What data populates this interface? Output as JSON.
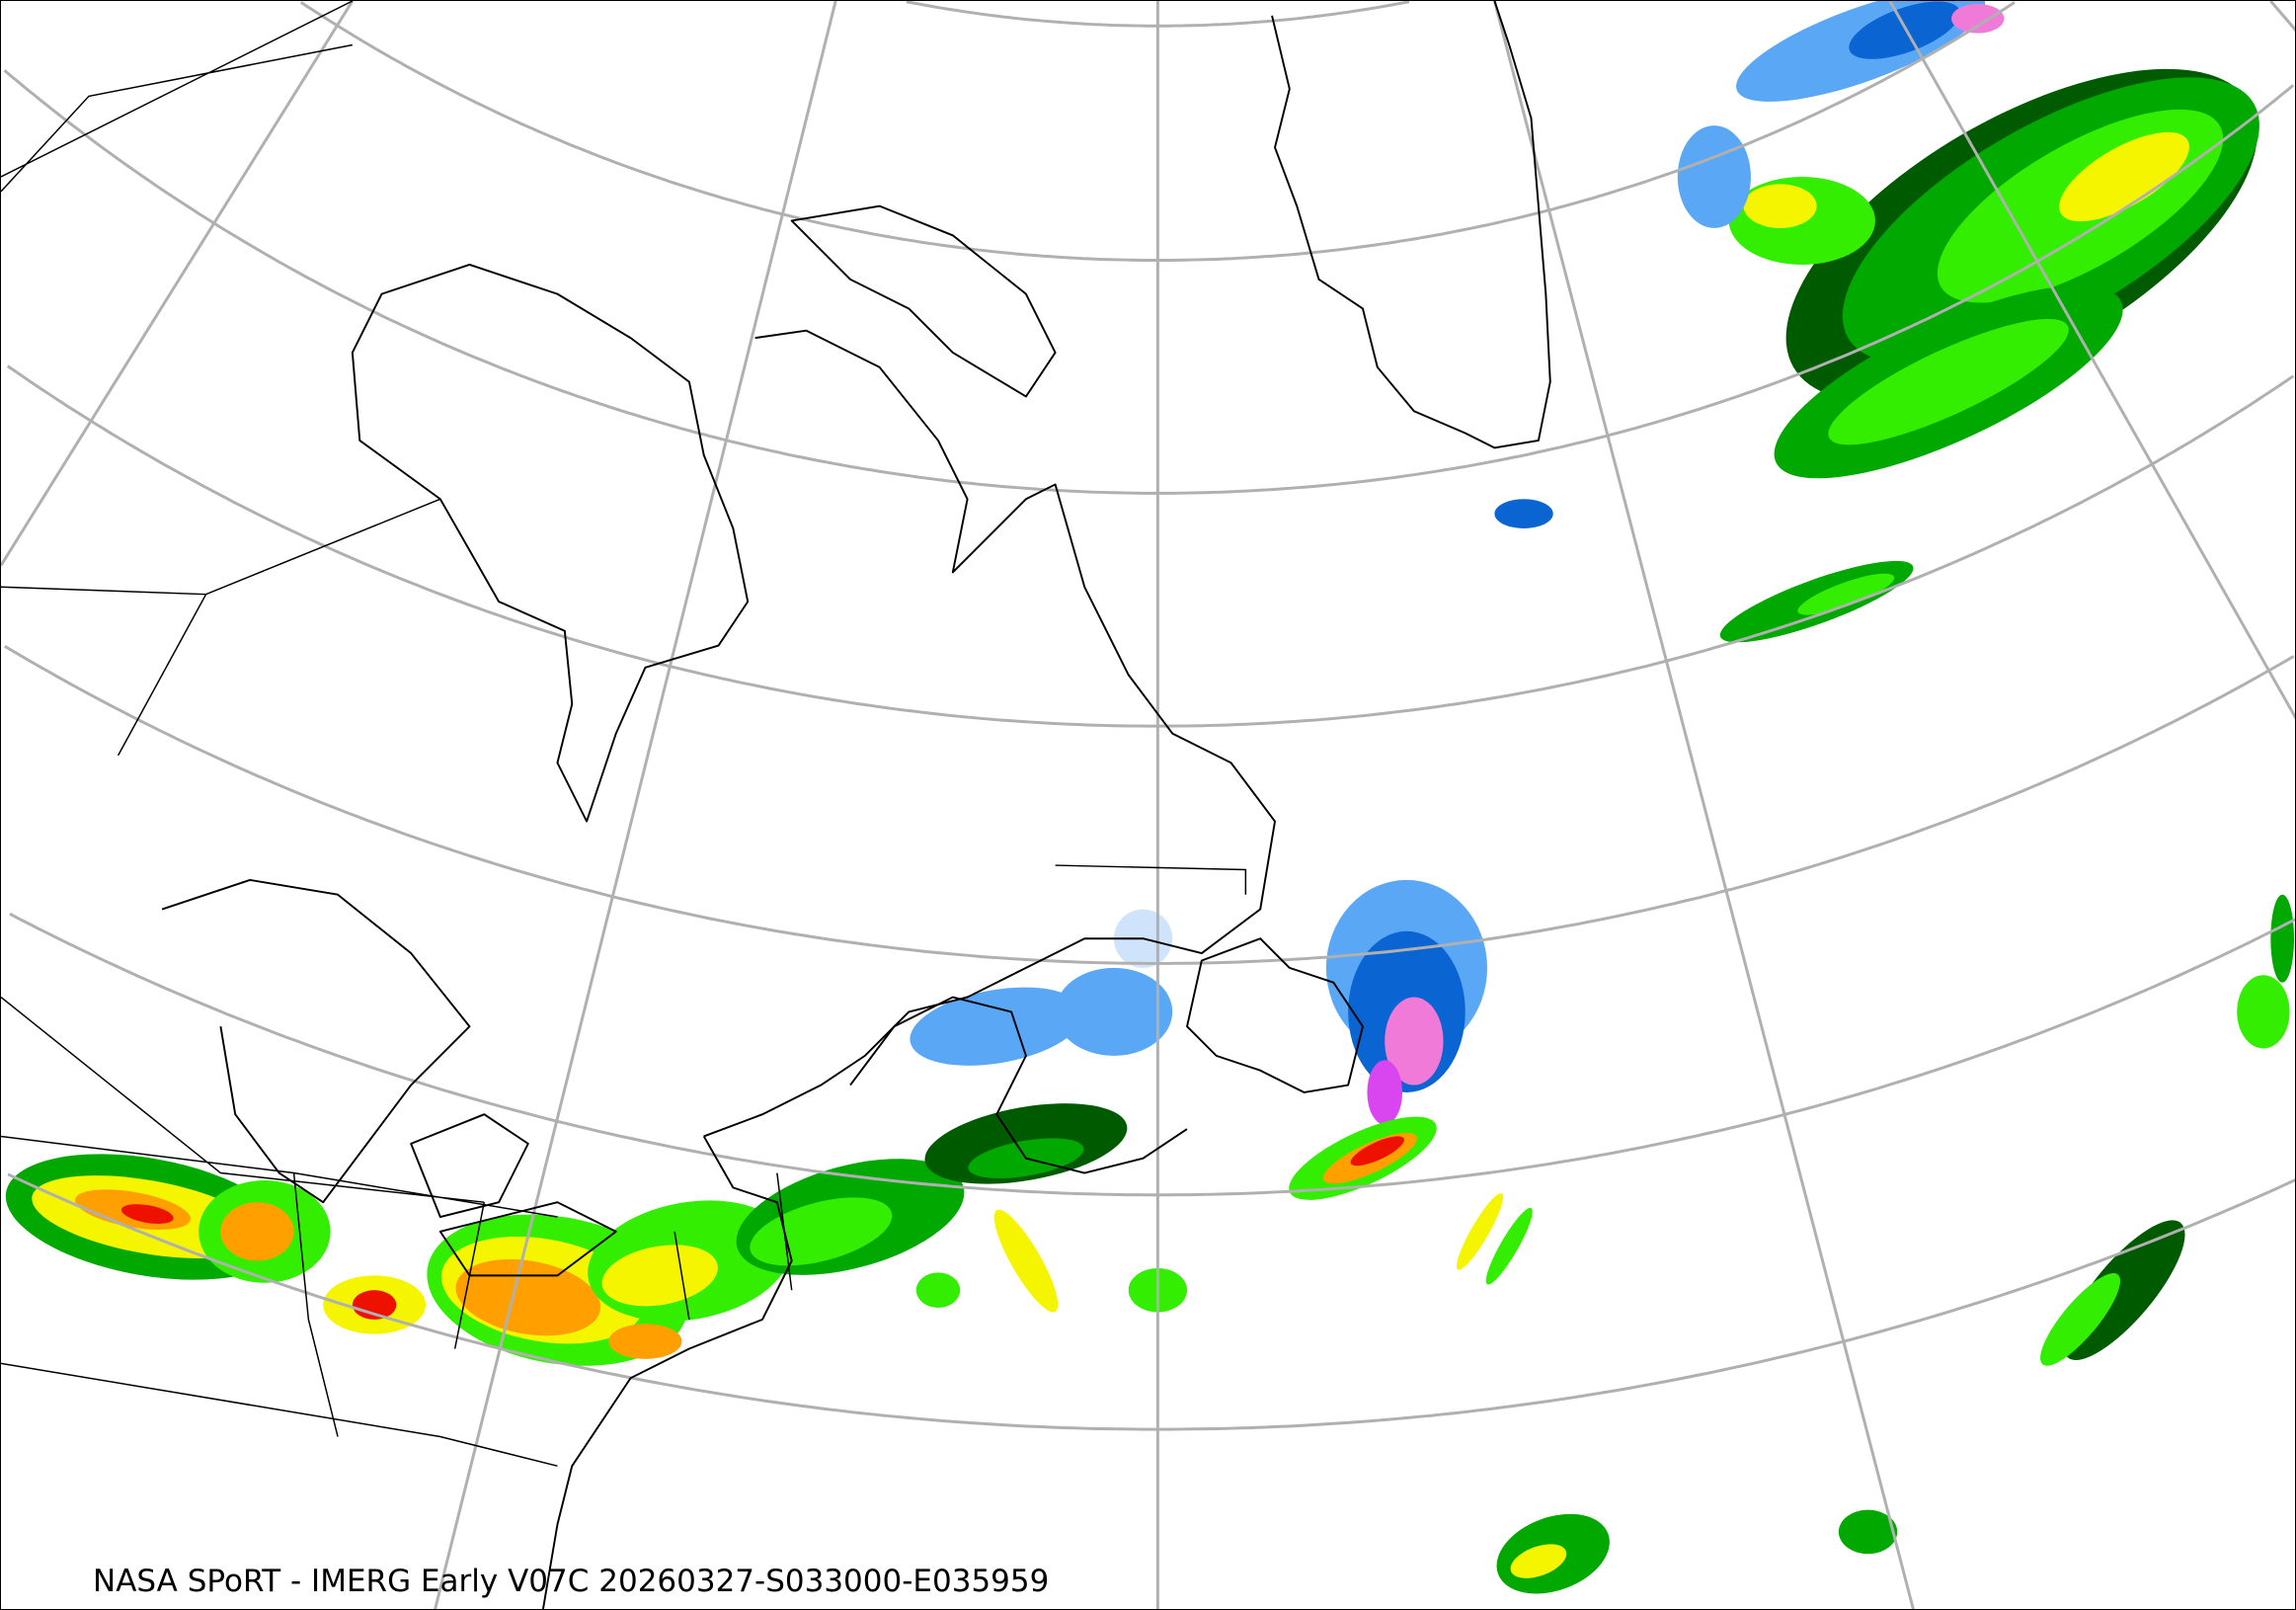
{
  "caption": "NASA SPoRT - IMERG Early V07C 20260327-S033000-E035959",
  "map": {
    "projection": "polar-conic",
    "graticule_color": "#b0b0b0",
    "coastline_color": "#000000",
    "precip_colors": {
      "very_light": "#cfe4fb",
      "light_blue": "#5aa8f5",
      "blue": "#0a64d2",
      "pink": "#f07ad8",
      "magenta": "#d946ef",
      "dark_green": "#005a00",
      "green": "#00a800",
      "bright_green": "#33ee00",
      "yellow": "#f5f500",
      "orange": "#ffa000",
      "red": "#ee1100"
    }
  }
}
